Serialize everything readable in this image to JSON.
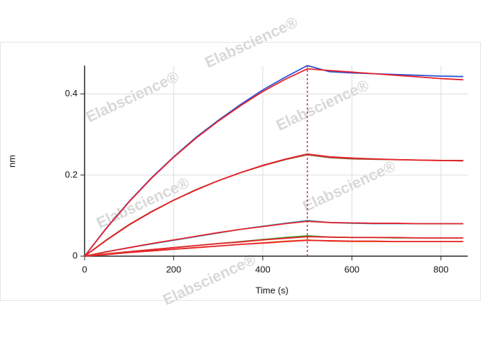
{
  "chart_data": {
    "type": "line",
    "xlabel": "Time (s)",
    "ylabel": "nm",
    "watermark": "Elabscience®",
    "x": [
      0,
      50,
      100,
      150,
      200,
      250,
      300,
      350,
      400,
      450,
      500,
      550,
      600,
      650,
      700,
      750,
      800,
      850
    ],
    "xlim": [
      0,
      860
    ],
    "xticks": [
      0,
      200,
      400,
      600,
      800
    ],
    "ylim": [
      0,
      0.47
    ],
    "yticks": [
      0,
      0.2,
      0.4
    ],
    "grid": true,
    "vline": 500,
    "vline_color": "#e8202a",
    "series": [
      {
        "color": "#2a52d6",
        "values": [
          0,
          0.071,
          0.135,
          0.193,
          0.245,
          0.293,
          0.335,
          0.374,
          0.41,
          0.441,
          0.47,
          0.455,
          0.452,
          0.45,
          0.448,
          0.446,
          0.444,
          0.443
        ]
      },
      {
        "color": "#e8202a",
        "values": [
          0,
          0.07,
          0.134,
          0.192,
          0.244,
          0.291,
          0.333,
          0.371,
          0.406,
          0.436,
          0.462,
          0.458,
          0.454,
          0.45,
          0.446,
          0.442,
          0.438,
          0.435
        ]
      },
      {
        "color": "#8a5a2b",
        "values": [
          0,
          0.041,
          0.078,
          0.11,
          0.138,
          0.164,
          0.186,
          0.206,
          0.223,
          0.238,
          0.25,
          0.243,
          0.24,
          0.239,
          0.238,
          0.237,
          0.236,
          0.236
        ]
      },
      {
        "color": "#e8202a",
        "values": [
          0,
          0.04,
          0.077,
          0.109,
          0.138,
          0.163,
          0.186,
          0.206,
          0.224,
          0.239,
          0.252,
          0.245,
          0.242,
          0.24,
          0.238,
          0.237,
          0.236,
          0.235
        ]
      },
      {
        "color": "#2ab0d6",
        "values": [
          0,
          0.011,
          0.021,
          0.03,
          0.039,
          0.048,
          0.057,
          0.066,
          0.074,
          0.081,
          0.088,
          0.083,
          0.081,
          0.08,
          0.08,
          0.08,
          0.08,
          0.08
        ]
      },
      {
        "color": "#e8202a",
        "values": [
          0,
          0.011,
          0.021,
          0.031,
          0.04,
          0.049,
          0.058,
          0.066,
          0.073,
          0.08,
          0.086,
          0.083,
          0.082,
          0.081,
          0.081,
          0.08,
          0.08,
          0.08
        ]
      },
      {
        "color": "#3aa02a",
        "values": [
          0,
          0.006,
          0.011,
          0.016,
          0.021,
          0.026,
          0.031,
          0.036,
          0.041,
          0.046,
          0.05,
          0.047,
          0.046,
          0.046,
          0.045,
          0.045,
          0.045,
          0.045
        ]
      },
      {
        "color": "#e8202a",
        "values": [
          0,
          0.006,
          0.011,
          0.016,
          0.021,
          0.026,
          0.031,
          0.035,
          0.04,
          0.044,
          0.048,
          0.047,
          0.046,
          0.046,
          0.046,
          0.045,
          0.045,
          0.045
        ]
      },
      {
        "color": "#e89a2a",
        "values": [
          0,
          0.005,
          0.009,
          0.013,
          0.017,
          0.021,
          0.025,
          0.029,
          0.033,
          0.037,
          0.04,
          0.037,
          0.036,
          0.036,
          0.036,
          0.036,
          0.036,
          0.036
        ]
      },
      {
        "color": "#e8202a",
        "values": [
          0,
          0.004,
          0.009,
          0.013,
          0.017,
          0.021,
          0.025,
          0.029,
          0.032,
          0.036,
          0.039,
          0.038,
          0.037,
          0.037,
          0.036,
          0.036,
          0.036,
          0.036
        ]
      }
    ]
  }
}
